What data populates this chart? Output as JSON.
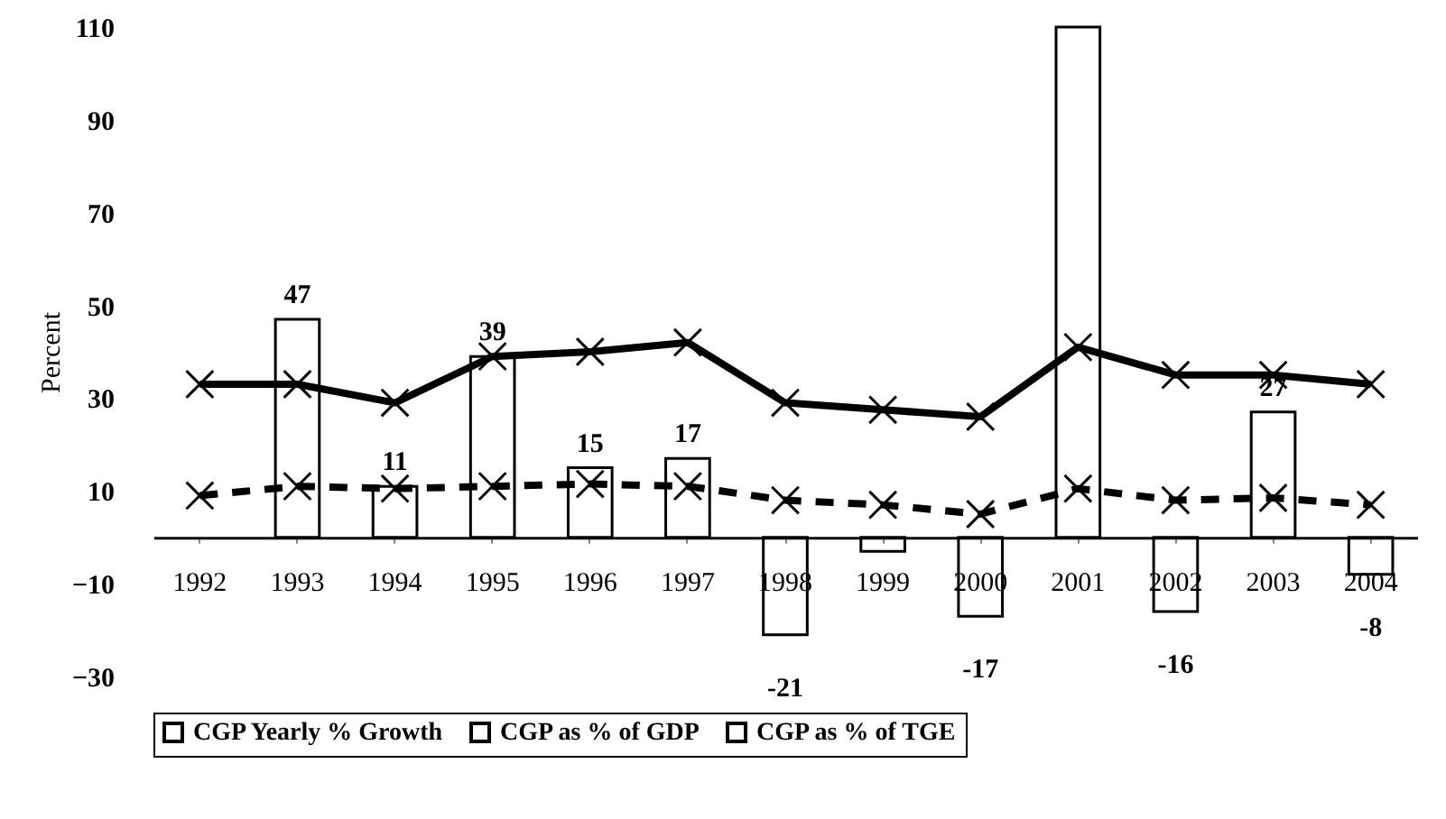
{
  "chart_data": {
    "type": "bar",
    "ylabel": "Percent",
    "categories": [
      "1992",
      "1993",
      "1994",
      "1995",
      "1996",
      "1997",
      "1998",
      "1999",
      "2000",
      "2001",
      "2002",
      "2003",
      "2004"
    ],
    "series": [
      {
        "name": "CGP Yearly % Growth",
        "color": "#000000",
        "values": [
          null,
          47,
          11,
          39,
          15,
          17,
          -21,
          -3,
          -17,
          110,
          -16,
          27,
          -8
        ],
        "value_labels": [
          null,
          "47",
          "11",
          "39",
          "15",
          "17",
          "-21",
          null,
          "-17",
          null,
          "-16",
          "27",
          "-8"
        ]
      },
      {
        "name": "CGP as % of GDP",
        "type": "line",
        "color": "#000000",
        "line_style": "dashed",
        "marker": "cross",
        "values": [
          9,
          11,
          10.5,
          11,
          11.5,
          11,
          8,
          7,
          5,
          10.5,
          8,
          8.5,
          7
        ]
      },
      {
        "name": "CGP as % of TGE",
        "type": "line",
        "color": "#000000",
        "line_style": "solid",
        "marker": "cross",
        "values": [
          33,
          33,
          29,
          39,
          40,
          42,
          29,
          27.5,
          26,
          41,
          35,
          35,
          33
        ]
      }
    ],
    "ylim": [
      -30,
      110
    ],
    "yticks": [
      -30,
      -10,
      10,
      30,
      50,
      70,
      90,
      110
    ],
    "legend": "bottom"
  }
}
